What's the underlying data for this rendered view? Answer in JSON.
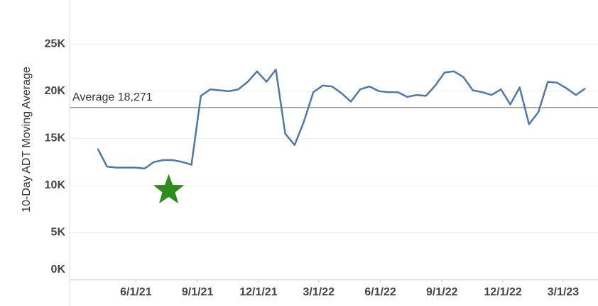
{
  "chart_data": {
    "type": "line",
    "y_label": "10-Day ADT Moving Average",
    "x": [
      "2021-04-05",
      "2021-04-19",
      "2021-05-03",
      "2021-05-17",
      "2021-05-31",
      "2021-06-14",
      "2021-06-28",
      "2021-07-12",
      "2021-07-26",
      "2021-08-09",
      "2021-08-23",
      "2021-09-06",
      "2021-09-20",
      "2021-10-04",
      "2021-10-18",
      "2021-11-01",
      "2021-11-15",
      "2021-11-29",
      "2021-12-13",
      "2021-12-27",
      "2022-01-10",
      "2022-01-24",
      "2022-02-07",
      "2022-02-21",
      "2022-03-07",
      "2022-03-21",
      "2022-04-04",
      "2022-04-18",
      "2022-05-02",
      "2022-05-16",
      "2022-05-30",
      "2022-06-13",
      "2022-06-27",
      "2022-07-11",
      "2022-07-25",
      "2022-08-08",
      "2022-08-22",
      "2022-09-05",
      "2022-09-19",
      "2022-10-03",
      "2022-10-17",
      "2022-10-31",
      "2022-11-14",
      "2022-11-28",
      "2022-12-12",
      "2022-12-26",
      "2023-01-09",
      "2023-01-23",
      "2023-02-06",
      "2023-02-20",
      "2023-03-06",
      "2023-03-20",
      "2023-04-03"
    ],
    "series": [
      {
        "name": "10-Day ADT Moving Average",
        "color": "#4e79a7",
        "values": [
          13900,
          12000,
          11900,
          11900,
          11900,
          11800,
          12500,
          12700,
          12700,
          12500,
          12200,
          19500,
          20200,
          20100,
          20000,
          20200,
          21000,
          22100,
          21000,
          22300,
          15500,
          14300,
          16800,
          19900,
          20600,
          20500,
          19800,
          18900,
          20200,
          20500,
          20000,
          19900,
          19900,
          19400,
          19600,
          19500,
          20600,
          22000,
          22100,
          21500,
          20100,
          19900,
          19600,
          20200,
          18600,
          20400,
          16500,
          17800,
          21000,
          20900,
          20300,
          19600,
          20300
        ]
      }
    ],
    "xlim": [
      "2021-02-22",
      "2023-04-22"
    ],
    "xticks": [
      {
        "value": "2021-06-01",
        "label": "6/1/21"
      },
      {
        "value": "2021-09-01",
        "label": "9/1/21"
      },
      {
        "value": "2021-12-01",
        "label": "12/1/21"
      },
      {
        "value": "2022-03-01",
        "label": "3/1/22"
      },
      {
        "value": "2022-06-01",
        "label": "6/1/22"
      },
      {
        "value": "2022-09-01",
        "label": "9/1/22"
      },
      {
        "value": "2022-12-01",
        "label": "12/1/22"
      },
      {
        "value": "2023-03-01",
        "label": "3/1/23"
      }
    ],
    "ylim": [
      0,
      29300
    ],
    "yticks": [
      {
        "value": 0,
        "label": "0K"
      },
      {
        "value": 5000,
        "label": "5K"
      },
      {
        "value": 10000,
        "label": "10K"
      },
      {
        "value": 15000,
        "label": "15K"
      },
      {
        "value": 20000,
        "label": "20K"
      },
      {
        "value": 25000,
        "label": "25K"
      }
    ],
    "grid": true,
    "reference_line": {
      "value": 18271,
      "label": "Average 18,271",
      "color": "#999999"
    },
    "marker": {
      "x": "2021-07-20",
      "y": 9500,
      "color": "#2e8b1e"
    }
  }
}
